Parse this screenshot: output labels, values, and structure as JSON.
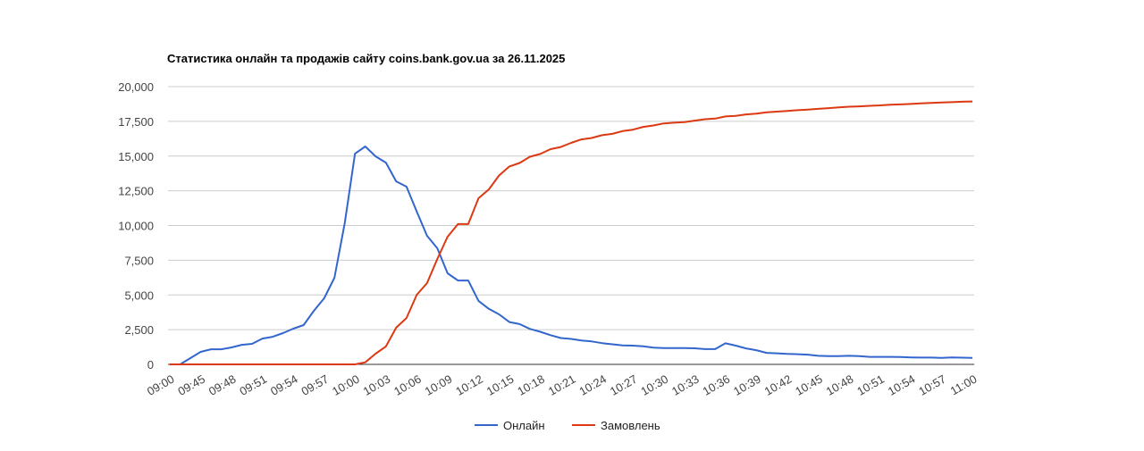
{
  "chart_data": {
    "type": "line",
    "title": "Статистика онлайн та продажів сайту coins.bank.gov.ua за 26.11.2025",
    "xlabel": "",
    "ylabel": "",
    "ylim": [
      0,
      20000
    ],
    "yticks": [
      "0",
      "2,500",
      "5,000",
      "7,500",
      "10,000",
      "12,500",
      "15,000",
      "17,500",
      "20,000"
    ],
    "ytick_values": [
      0,
      2500,
      5000,
      7500,
      10000,
      12500,
      15000,
      17500,
      20000
    ],
    "grid": true,
    "legend_position": "bottom",
    "x": [
      "09:00",
      "09:43",
      "09:44",
      "09:45",
      "09:46",
      "09:47",
      "09:48",
      "09:49",
      "09:50",
      "09:51",
      "09:52",
      "09:53",
      "09:54",
      "09:55",
      "09:56",
      "09:57",
      "09:58",
      "09:59",
      "10:00",
      "10:01",
      "10:02",
      "10:03",
      "10:04",
      "10:05",
      "10:06",
      "10:07",
      "10:08",
      "10:09",
      "10:10",
      "10:11",
      "10:12",
      "10:13",
      "10:14",
      "10:15",
      "10:16",
      "10:17",
      "10:18",
      "10:19",
      "10:20",
      "10:21",
      "10:22",
      "10:23",
      "10:24",
      "10:25",
      "10:26",
      "10:27",
      "10:28",
      "10:29",
      "10:30",
      "10:31",
      "10:32",
      "10:33",
      "10:34",
      "10:35",
      "10:36",
      "10:37",
      "10:38",
      "10:39",
      "10:40",
      "10:41",
      "10:42",
      "10:43",
      "10:44",
      "10:45",
      "10:46",
      "10:47",
      "10:48",
      "10:49",
      "10:50",
      "10:51",
      "10:52",
      "10:53",
      "10:54",
      "10:55",
      "10:56",
      "10:57",
      "10:58",
      "10:59",
      "11:00"
    ],
    "xtick_labels": [
      "09:00",
      "09:45",
      "09:48",
      "09:51",
      "09:54",
      "09:57",
      "10:00",
      "10:03",
      "10:06",
      "10:09",
      "10:12",
      "10:15",
      "10:18",
      "10:21",
      "10:24",
      "10:27",
      "10:30",
      "10:33",
      "10:36",
      "10:39",
      "10:42",
      "10:45",
      "10:48",
      "10:51",
      "10:54",
      "10:57",
      "11:00"
    ],
    "series": [
      {
        "name": "Онлайн",
        "color": "#3366cc",
        "values": [
          0,
          0,
          450,
          900,
          1090,
          1090,
          1220,
          1410,
          1480,
          1860,
          1990,
          2250,
          2570,
          2830,
          3860,
          4760,
          6240,
          10160,
          15170,
          15690,
          14980,
          14530,
          13180,
          12800,
          11000,
          9260,
          8360,
          6560,
          6040,
          6040,
          4570,
          4000,
          3600,
          3050,
          2900,
          2550,
          2350,
          2100,
          1900,
          1830,
          1720,
          1650,
          1530,
          1450,
          1370,
          1350,
          1300,
          1200,
          1180,
          1170,
          1180,
          1160,
          1100,
          1100,
          1520,
          1350,
          1150,
          1020,
          830,
          800,
          750,
          730,
          700,
          620,
          600,
          600,
          620,
          590,
          540,
          540,
          540,
          530,
          500,
          490,
          490,
          470,
          500,
          480,
          470
        ]
      },
      {
        "name": "Замовлень",
        "color": "#dc3912",
        "values": [
          0,
          0,
          0,
          0,
          0,
          0,
          0,
          0,
          0,
          0,
          0,
          0,
          0,
          0,
          0,
          0,
          0,
          0,
          0,
          150,
          770,
          1290,
          2640,
          3340,
          5010,
          5850,
          7590,
          9190,
          10100,
          10100,
          11960,
          12600,
          13600,
          14250,
          14500,
          14950,
          15150,
          15500,
          15650,
          15950,
          16200,
          16300,
          16500,
          16600,
          16800,
          16900,
          17100,
          17200,
          17350,
          17400,
          17450,
          17550,
          17650,
          17700,
          17850,
          17900,
          18000,
          18050,
          18150,
          18200,
          18250,
          18300,
          18350,
          18400,
          18450,
          18500,
          18550,
          18580,
          18620,
          18650,
          18700,
          18720,
          18750,
          18800,
          18830,
          18860,
          18880,
          18910,
          18930
        ]
      }
    ]
  }
}
